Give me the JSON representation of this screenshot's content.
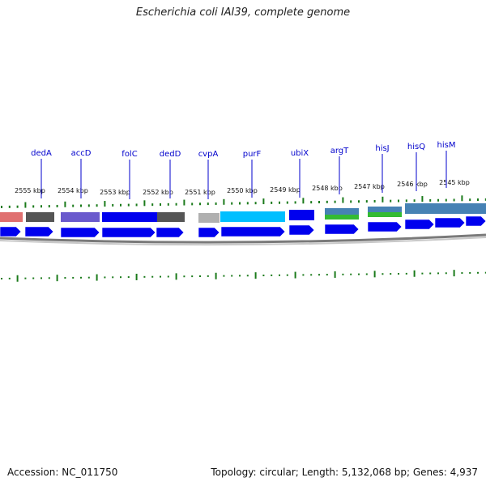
{
  "title": "Escherichia coli IAI39, complete genome",
  "footer": {
    "accession": "Accession: NC_011750",
    "summary": "Topology: circular; Length: 5,132,068 bp; Genes: 4,937"
  },
  "colors": {
    "cds": "#0000ee",
    "gene_link": "#0000cc",
    "tick": "#1a7a1a",
    "backbone": "#777777"
  },
  "genes": [
    {
      "name": "dedA"
    },
    {
      "name": "accD"
    },
    {
      "name": "folC"
    },
    {
      "name": "dedD"
    },
    {
      "name": "cvpA"
    },
    {
      "name": "purF"
    },
    {
      "name": "ubiX"
    },
    {
      "name": "argT"
    },
    {
      "name": "hisJ"
    },
    {
      "name": "hisQ"
    },
    {
      "name": "hisM"
    }
  ],
  "kbp_labels": [
    "2555 kbp",
    "2554 kbp",
    "2553 kbp",
    "2552 kbp",
    "2551 kbp",
    "2550 kbp",
    "2549 kbp",
    "2548 kbp",
    "2547 kbp",
    "2546 kbp",
    "2545 kbp"
  ],
  "feature_colors": [
    "#e07070",
    "#555555",
    "#6a5acd",
    "#0000ee",
    "#555555",
    "#b0b0b0",
    "#00bfff",
    "#0000ee",
    "#4682b4",
    "#4682b4",
    "#4682b4"
  ]
}
